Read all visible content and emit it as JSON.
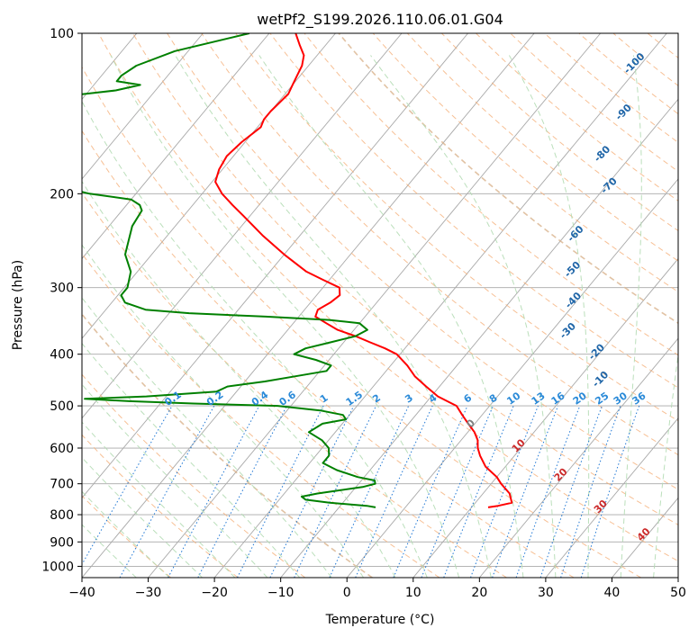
{
  "chart_data": {
    "type": "line",
    "chart_kind": "skew-T log-P diagram",
    "title": "wetPf2_S199.2026.110.06.01.G04",
    "xlabel": "Temperature (°C)",
    "ylabel": "Pressure (hPa)",
    "xlim": [
      -40,
      50
    ],
    "ylim": [
      1050,
      100
    ],
    "y_scale": "log",
    "x_ticks": [
      -40,
      -30,
      -20,
      -10,
      0,
      10,
      20,
      30,
      40,
      50
    ],
    "x_tick_labels": [
      "−40",
      "−30",
      "−20",
      "−10",
      "0",
      "10",
      "20",
      "30",
      "40",
      "50"
    ],
    "y_ticks": [
      1000,
      900,
      800,
      700,
      600,
      500,
      400,
      300,
      200,
      100
    ],
    "y_tick_labels": [
      "1000",
      "900",
      "800",
      "700",
      "600",
      "500",
      "400",
      "300",
      "200",
      "100"
    ],
    "grid": true,
    "colors": {
      "temperature": "#ff0000",
      "dewpoint": "#008000",
      "isotherm": "#a9a9a9",
      "dry_adiabat": "#f5b07a",
      "moist_adiabat": "#b4dcb4",
      "mixing_ratio": "#1f77d4",
      "dry_adiabat_strong": "#d9b38c",
      "isobar": "#a9a9a9",
      "frost_label": "#2066a8",
      "moist_label": "#2a8ad8",
      "iso_label_dark": "#cc2a2a",
      "iso_label_zero": "#7f7f7f"
    },
    "series": [
      {
        "name": "temperature",
        "points": [
          [
            100,
            -76
          ],
          [
            105,
            -74
          ],
          [
            110,
            -72
          ],
          [
            115,
            -71
          ],
          [
            120,
            -70.5
          ],
          [
            125,
            -70
          ],
          [
            130,
            -69.5
          ],
          [
            140,
            -70
          ],
          [
            145,
            -70
          ],
          [
            150,
            -69.5
          ],
          [
            160,
            -70.5
          ],
          [
            170,
            -71
          ],
          [
            180,
            -70.5
          ],
          [
            190,
            -69.5
          ],
          [
            200,
            -67
          ],
          [
            210,
            -64
          ],
          [
            220,
            -61
          ],
          [
            240,
            -55.5
          ],
          [
            260,
            -50
          ],
          [
            280,
            -44.5
          ],
          [
            290,
            -41
          ],
          [
            300,
            -37.5
          ],
          [
            310,
            -36.5
          ],
          [
            320,
            -37
          ],
          [
            330,
            -38
          ],
          [
            340,
            -37.5
          ],
          [
            350,
            -35
          ],
          [
            360,
            -32.5
          ],
          [
            370,
            -29
          ],
          [
            380,
            -26
          ],
          [
            390,
            -23
          ],
          [
            400,
            -20.5
          ],
          [
            420,
            -17.5
          ],
          [
            440,
            -15
          ],
          [
            460,
            -12
          ],
          [
            480,
            -9
          ],
          [
            490,
            -7
          ],
          [
            500,
            -5
          ],
          [
            520,
            -3
          ],
          [
            540,
            -1
          ],
          [
            560,
            1
          ],
          [
            580,
            2.5
          ],
          [
            600,
            3.5
          ],
          [
            620,
            4.8
          ],
          [
            650,
            7
          ],
          [
            680,
            10
          ],
          [
            700,
            11.5
          ],
          [
            730,
            14
          ],
          [
            760,
            15.5
          ],
          [
            770,
            13.8
          ],
          [
            775,
            12.5
          ]
        ]
      },
      {
        "name": "dewpoint",
        "points": [
          [
            100,
            -83
          ],
          [
            108,
            -92
          ],
          [
            115,
            -96
          ],
          [
            120,
            -97
          ],
          [
            123,
            -97
          ],
          [
            125,
            -93
          ],
          [
            128,
            -96
          ],
          [
            135,
            -111
          ],
          [
            138,
            -121
          ],
          [
            140,
            -117
          ],
          [
            145,
            -105
          ],
          [
            150,
            -100
          ],
          [
            160,
            -98
          ],
          [
            170,
            -100
          ],
          [
            180,
            -99
          ],
          [
            190,
            -96
          ],
          [
            200,
            -87
          ],
          [
            205,
            -80
          ],
          [
            210,
            -78
          ],
          [
            215,
            -77
          ],
          [
            230,
            -76.5
          ],
          [
            260,
            -74
          ],
          [
            280,
            -71
          ],
          [
            300,
            -69.5
          ],
          [
            310,
            -69.5
          ],
          [
            320,
            -68
          ],
          [
            330,
            -64
          ],
          [
            335,
            -57
          ],
          [
            340,
            -45
          ],
          [
            345,
            -35
          ],
          [
            350,
            -30
          ],
          [
            360,
            -28
          ],
          [
            370,
            -29
          ],
          [
            380,
            -32
          ],
          [
            390,
            -35
          ],
          [
            400,
            -36
          ],
          [
            410,
            -32
          ],
          [
            420,
            -29
          ],
          [
            430,
            -29
          ],
          [
            440,
            -33
          ],
          [
            450,
            -37
          ],
          [
            460,
            -42
          ],
          [
            470,
            -43
          ],
          [
            480,
            -53
          ],
          [
            485,
            -62
          ],
          [
            490,
            -55
          ],
          [
            495,
            -45
          ],
          [
            500,
            -32
          ],
          [
            510,
            -25
          ],
          [
            520,
            -21
          ],
          [
            530,
            -20
          ],
          [
            540,
            -23
          ],
          [
            560,
            -24
          ],
          [
            580,
            -21
          ],
          [
            600,
            -19
          ],
          [
            620,
            -18
          ],
          [
            640,
            -18
          ],
          [
            660,
            -15
          ],
          [
            680,
            -11
          ],
          [
            690,
            -8
          ],
          [
            700,
            -7.5
          ],
          [
            710,
            -9
          ],
          [
            720,
            -12
          ],
          [
            730,
            -15
          ],
          [
            740,
            -17
          ],
          [
            750,
            -16
          ],
          [
            760,
            -12
          ],
          [
            770,
            -6
          ],
          [
            775,
            -4.5
          ]
        ]
      }
    ],
    "mixing_ratio_labels": [
      "0.1",
      "0.2",
      "0.4",
      "0.6",
      "1",
      "1.5",
      "2",
      "3",
      "4",
      "6",
      "8",
      "10",
      "13",
      "16",
      "20",
      "25",
      "30",
      "36"
    ],
    "moist_adiabat_labels": [
      "-100",
      "-90",
      "-80",
      "-70",
      "-60",
      "-50",
      "-40",
      "-30",
      "-20",
      "-10"
    ],
    "isotherm_labels": [
      "0",
      "10",
      "20",
      "30",
      "40"
    ]
  }
}
